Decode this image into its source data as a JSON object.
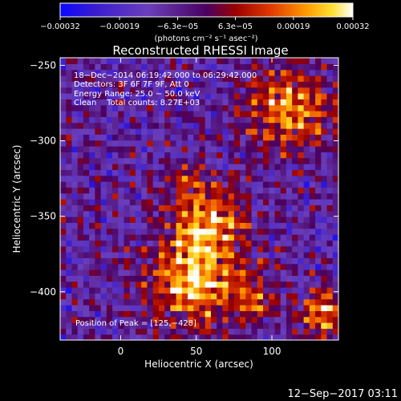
{
  "chart_data": {
    "type": "heatmap",
    "title": "Reconstructed RHESSI Image",
    "xlabel": "Heliocentric X (arcsec)",
    "ylabel": "Heliocentric Y (arcsec)",
    "xlim": [
      -40,
      144
    ],
    "ylim": [
      -432,
      -245
    ],
    "x_ticks": [
      0,
      50,
      100
    ],
    "x_tick_labels": [
      "0",
      "50",
      "100"
    ],
    "y_ticks": [
      -250,
      -300,
      -350,
      -400
    ],
    "y_tick_labels": [
      "−250",
      "−300",
      "−350",
      "−400"
    ],
    "colorbar": {
      "range": [
        -0.00032,
        0.00032
      ],
      "ticks": [
        -0.00032,
        -0.00019,
        -6.3e-05,
        6.3e-05,
        0.00019,
        0.00032
      ],
      "tick_labels": [
        "−0.00032",
        "−0.00019",
        "−6.3e−05",
        "6.3e−05",
        "0.00019",
        "0.00032"
      ],
      "label": "(photons cm⁻² s⁻¹ asec⁻²)"
    },
    "annotations": [
      "18−Dec−2014 06:19:42.000 to 06:29:42.000",
      "Detectors: 3F 6F 7F 9F, Att 0",
      "Energy Range: 25.0 − 50.0 keV",
      "Clean    Total counts: 8.27E+03"
    ],
    "peak_label": "Position of Peak = [125,−428]",
    "peak": [
      125,
      -428
    ],
    "sources": [
      {
        "x": 50,
        "y": -390,
        "sigma": 22,
        "amp": 0.00034
      },
      {
        "x": 58,
        "y": -350,
        "sigma": 16,
        "amp": 0.00026
      },
      {
        "x": 42,
        "y": -325,
        "sigma": 9,
        "amp": 0.00014
      },
      {
        "x": 110,
        "y": -278,
        "sigma": 19,
        "amp": 0.0003
      },
      {
        "x": 135,
        "y": -415,
        "sigma": 12,
        "amp": 0.00028
      },
      {
        "x": 90,
        "y": -405,
        "sigma": 10,
        "amp": 0.00016
      }
    ],
    "background": -9e-05
  },
  "footer": {
    "timestamp": "12−Sep−2017 03:11"
  }
}
